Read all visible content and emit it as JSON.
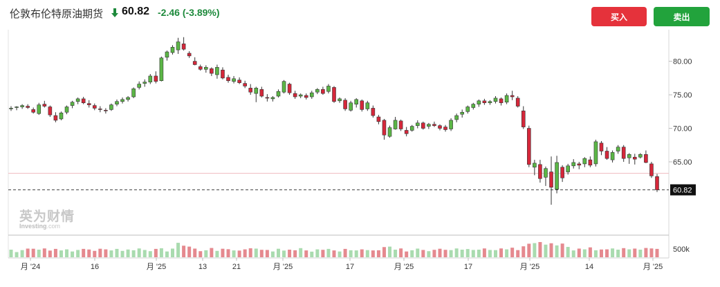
{
  "header": {
    "instrument": "伦敦布伦特原油期货",
    "price": "60.82",
    "change": "-2.46",
    "change_pct": "(-3.89%)",
    "direction_icon": "arrow-down-icon"
  },
  "actions": {
    "buy_label": "买入",
    "sell_label": "卖出"
  },
  "watermark": {
    "cn": "英为财情",
    "en": "Investing",
    "en_suffix": ".com"
  },
  "colors": {
    "up": "#5bb646",
    "down": "#d5273a",
    "vol_up": "#a9dbaf",
    "vol_down": "#e5898f",
    "buy": "#e5323b",
    "sell": "#22a33c",
    "change": "#1e8a3c"
  },
  "chart_data": {
    "type": "candlestick",
    "y_ticks": [
      "80.00",
      "75.00",
      "70.00",
      "65.00"
    ],
    "y_range": [
      58.5,
      84.5
    ],
    "volume_tick": "500k",
    "x_ticks": [
      "月 '24",
      "16",
      "月 '25",
      "13",
      "21",
      "月 '25",
      "17",
      "月 '25",
      "17",
      "月 '25",
      "14",
      "月 '25"
    ],
    "current_price_label": "60.82",
    "current_price": 60.82,
    "previous_close": 63.28,
    "ohlc": [
      [
        72.9,
        73.3,
        72.6,
        73.0
      ],
      [
        73.1,
        73.3,
        72.7,
        73.2
      ],
      [
        73.2,
        73.6,
        72.9,
        73.4
      ],
      [
        73.3,
        73.6,
        72.9,
        73.1
      ],
      [
        72.8,
        73.1,
        72.2,
        72.4
      ],
      [
        72.2,
        73.8,
        72.0,
        73.5
      ],
      [
        73.6,
        74.1,
        73.1,
        73.3
      ],
      [
        73.2,
        73.4,
        71.7,
        72.0
      ],
      [
        71.9,
        72.4,
        70.9,
        71.2
      ],
      [
        71.4,
        72.5,
        71.2,
        72.3
      ],
      [
        72.4,
        73.4,
        72.1,
        73.2
      ],
      [
        73.4,
        74.1,
        73.0,
        73.9
      ],
      [
        74.0,
        74.6,
        73.6,
        74.4
      ],
      [
        74.4,
        74.7,
        73.6,
        73.8
      ],
      [
        73.7,
        74.2,
        73.1,
        73.5
      ],
      [
        73.4,
        73.7,
        72.7,
        73.0
      ],
      [
        72.9,
        73.3,
        72.4,
        72.8
      ],
      [
        72.7,
        73.0,
        72.2,
        72.6
      ],
      [
        72.8,
        73.7,
        72.6,
        73.5
      ],
      [
        73.6,
        74.3,
        73.3,
        74.0
      ],
      [
        74.0,
        74.6,
        73.7,
        74.3
      ],
      [
        74.3,
        74.8,
        74.0,
        74.6
      ],
      [
        74.7,
        76.1,
        74.5,
        75.9
      ],
      [
        76.1,
        77.0,
        75.8,
        76.6
      ],
      [
        76.7,
        77.3,
        76.2,
        76.9
      ],
      [
        76.9,
        78.1,
        76.6,
        77.8
      ],
      [
        77.8,
        78.5,
        76.7,
        77.0
      ],
      [
        77.1,
        80.7,
        77.0,
        80.5
      ],
      [
        80.6,
        81.6,
        80.1,
        81.4
      ],
      [
        81.3,
        82.4,
        81.0,
        82.1
      ],
      [
        81.7,
        83.5,
        81.1,
        82.9
      ],
      [
        82.6,
        83.6,
        81.6,
        81.8
      ],
      [
        81.2,
        81.5,
        80.5,
        80.8
      ],
      [
        80.0,
        80.6,
        79.4,
        79.5
      ],
      [
        79.2,
        79.5,
        78.6,
        78.8
      ],
      [
        78.8,
        79.4,
        78.3,
        79.1
      ],
      [
        78.9,
        79.1,
        77.8,
        78.2
      ],
      [
        78.0,
        79.5,
        77.4,
        79.1
      ],
      [
        78.7,
        79.1,
        77.3,
        77.5
      ],
      [
        77.6,
        78.0,
        76.8,
        77.1
      ],
      [
        77.0,
        77.8,
        76.7,
        77.4
      ],
      [
        77.2,
        77.6,
        76.6,
        76.8
      ],
      [
        76.7,
        77.1,
        76.0,
        76.3
      ],
      [
        76.0,
        76.6,
        75.0,
        75.4
      ],
      [
        75.2,
        76.2,
        73.9,
        76.0
      ],
      [
        75.8,
        76.2,
        74.6,
        74.8
      ],
      [
        74.6,
        75.1,
        74.0,
        74.5
      ],
      [
        74.4,
        74.8,
        74.0,
        74.6
      ],
      [
        74.8,
        75.8,
        74.6,
        75.5
      ],
      [
        75.4,
        77.2,
        75.2,
        77.0
      ],
      [
        76.6,
        76.8,
        75.0,
        75.3
      ],
      [
        75.2,
        75.6,
        74.4,
        74.7
      ],
      [
        74.8,
        75.2,
        74.5,
        75.0
      ],
      [
        74.9,
        75.2,
        74.3,
        74.6
      ],
      [
        74.7,
        75.6,
        74.4,
        75.3
      ],
      [
        75.4,
        76.0,
        75.1,
        75.8
      ],
      [
        75.8,
        76.2,
        75.0,
        75.2
      ],
      [
        75.5,
        76.6,
        75.2,
        76.3
      ],
      [
        76.1,
        76.3,
        73.8,
        74.0
      ],
      [
        74.1,
        74.6,
        73.8,
        74.4
      ],
      [
        74.2,
        74.5,
        72.6,
        72.9
      ],
      [
        72.7,
        74.1,
        72.5,
        73.8
      ],
      [
        73.6,
        74.5,
        73.1,
        74.3
      ],
      [
        74.1,
        74.3,
        72.5,
        72.8
      ],
      [
        72.9,
        74.1,
        72.6,
        73.8
      ],
      [
        73.0,
        73.4,
        71.6,
        71.9
      ],
      [
        71.7,
        72.0,
        70.6,
        71.0
      ],
      [
        71.2,
        71.4,
        68.3,
        69.0
      ],
      [
        68.8,
        70.4,
        68.6,
        70.1
      ],
      [
        69.9,
        71.7,
        69.8,
        71.2
      ],
      [
        71.1,
        71.3,
        69.6,
        69.9
      ],
      [
        69.7,
        70.2,
        68.8,
        69.2
      ],
      [
        69.7,
        70.5,
        69.5,
        70.3
      ],
      [
        70.4,
        71.2,
        70.0,
        70.8
      ],
      [
        70.8,
        71.0,
        69.8,
        70.0
      ],
      [
        70.3,
        70.8,
        69.9,
        70.6
      ],
      [
        70.6,
        71.0,
        70.2,
        70.4
      ],
      [
        70.4,
        70.6,
        69.7,
        70.0
      ],
      [
        70.2,
        70.5,
        69.5,
        69.8
      ],
      [
        69.9,
        71.5,
        69.6,
        71.2
      ],
      [
        71.3,
        72.2,
        70.9,
        71.9
      ],
      [
        72.1,
        72.8,
        71.6,
        72.4
      ],
      [
        72.5,
        73.4,
        72.2,
        73.2
      ],
      [
        73.1,
        73.8,
        72.8,
        73.6
      ],
      [
        73.6,
        74.3,
        73.2,
        74.1
      ],
      [
        74.1,
        74.4,
        73.5,
        73.8
      ],
      [
        73.8,
        74.2,
        73.5,
        74.0
      ],
      [
        74.0,
        74.8,
        73.7,
        74.5
      ],
      [
        74.4,
        74.6,
        73.4,
        73.8
      ],
      [
        73.9,
        75.2,
        73.6,
        74.9
      ],
      [
        74.9,
        75.6,
        74.2,
        74.7
      ],
      [
        74.5,
        74.8,
        73.1,
        73.3
      ],
      [
        72.6,
        73.3,
        69.9,
        70.2
      ],
      [
        70.0,
        70.4,
        64.2,
        64.6
      ],
      [
        64.2,
        65.3,
        63.0,
        64.8
      ],
      [
        64.6,
        65.3,
        61.9,
        62.5
      ],
      [
        62.7,
        64.3,
        61.4,
        64.0
      ],
      [
        63.5,
        65.8,
        58.6,
        61.2
      ],
      [
        60.9,
        65.9,
        60.3,
        64.9
      ],
      [
        64.2,
        64.5,
        62.0,
        62.6
      ],
      [
        63.5,
        64.7,
        63.1,
        64.4
      ],
      [
        64.4,
        65.4,
        64.0,
        64.9
      ],
      [
        64.7,
        65.0,
        63.9,
        64.5
      ],
      [
        64.7,
        65.7,
        64.2,
        65.5
      ],
      [
        65.3,
        65.8,
        64.2,
        64.5
      ],
      [
        64.7,
        68.3,
        64.3,
        68.0
      ],
      [
        67.8,
        68.1,
        66.0,
        66.6
      ],
      [
        66.6,
        67.2,
        65.3,
        65.5
      ],
      [
        65.3,
        66.7,
        64.9,
        66.4
      ],
      [
        66.6,
        67.5,
        66.2,
        67.2
      ],
      [
        67.2,
        67.5,
        65.0,
        65.5
      ],
      [
        65.6,
        66.3,
        64.7,
        66.1
      ],
      [
        65.7,
        66.2,
        64.6,
        65.4
      ],
      [
        65.7,
        66.3,
        65.5,
        66.1
      ],
      [
        66.1,
        66.7,
        64.8,
        64.9
      ],
      [
        64.7,
        65.0,
        62.6,
        62.9
      ],
      [
        62.8,
        63.2,
        60.5,
        60.82
      ]
    ],
    "volumes": [
      0.5,
      0.34,
      0.47,
      0.57,
      0.56,
      0.5,
      0.58,
      0.44,
      0.55,
      0.45,
      0.52,
      0.38,
      0.48,
      0.55,
      0.51,
      0.42,
      0.56,
      0.52,
      0.45,
      0.55,
      0.42,
      0.51,
      0.46,
      0.58,
      0.48,
      0.4,
      0.55,
      0.59,
      0.38,
      0.57,
      0.95,
      0.76,
      0.7,
      0.57,
      0.4,
      0.46,
      0.61,
      0.42,
      0.56,
      0.53,
      0.45,
      0.44,
      0.52,
      0.59,
      0.57,
      0.49,
      0.48,
      0.38,
      0.56,
      0.44,
      0.5,
      0.46,
      0.6,
      0.45,
      0.37,
      0.52,
      0.49,
      0.55,
      0.45,
      0.38,
      0.55,
      0.46,
      0.45,
      0.52,
      0.47,
      0.45,
      0.46,
      0.67,
      0.7,
      0.5,
      0.58,
      0.38,
      0.46,
      0.57,
      0.48,
      0.4,
      0.49,
      0.56,
      0.49,
      0.47,
      0.58,
      0.5,
      0.54,
      0.48,
      0.5,
      0.58,
      0.48,
      0.47,
      0.58,
      0.52,
      0.63,
      0.47,
      0.72,
      0.89,
      0.93,
      1.0,
      0.83,
      0.92,
      0.78,
      0.9,
      0.68,
      0.45,
      0.57,
      0.52,
      0.65,
      0.46,
      0.51,
      0.52,
      0.58,
      0.5,
      0.6,
      0.52,
      0.57,
      0.5,
      0.61,
      0.58,
      0.55
    ]
  }
}
